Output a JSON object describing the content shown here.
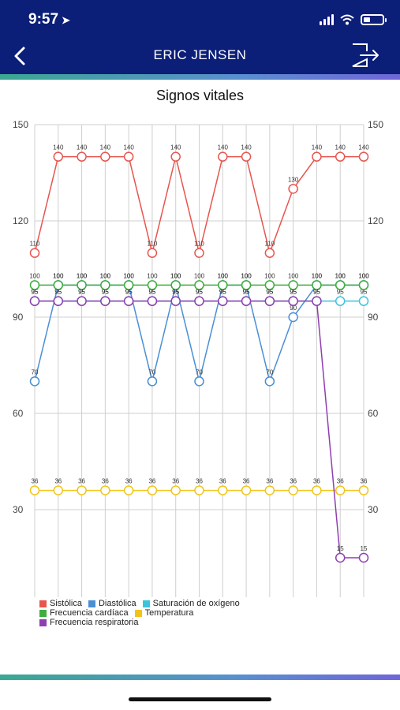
{
  "status_bar": {
    "time": "9:57",
    "location_icon": "location-arrow-icon",
    "icons": [
      "signal-icon",
      "wifi-icon",
      "battery-icon"
    ]
  },
  "header": {
    "title": "ERIC JENSEN",
    "back_icon": "chevron-left-icon",
    "logout_icon": "logout-icon",
    "background": "#0b1e78"
  },
  "chart_data": {
    "type": "line",
    "title": "Signos vitales",
    "ylim": [
      0,
      150
    ],
    "y_ticks": [
      30,
      60,
      90,
      120,
      150
    ],
    "grid": true,
    "legend_position": "bottom-left",
    "point_count": 15,
    "series": [
      {
        "name": "Sistólica",
        "color": "#e8554e",
        "values": [
          110,
          140,
          140,
          140,
          140,
          110,
          140,
          110,
          140,
          140,
          110,
          130,
          140,
          140,
          140
        ]
      },
      {
        "name": "Diastólica",
        "color": "#4a8fd6",
        "values": [
          70,
          100,
          100,
          100,
          100,
          70,
          100,
          70,
          100,
          100,
          70,
          90,
          100,
          100,
          100
        ]
      },
      {
        "name": "Saturación de oxígeno",
        "color": "#3cc4dc",
        "values": [
          95,
          95,
          95,
          95,
          95,
          95,
          95,
          95,
          95,
          95,
          95,
          95,
          95,
          95,
          95
        ]
      },
      {
        "name": "Frecuencia cardíaca",
        "color": "#3fae3f",
        "values": [
          100,
          100,
          100,
          100,
          100,
          100,
          100,
          100,
          100,
          100,
          100,
          100,
          100,
          100,
          100
        ]
      },
      {
        "name": "Temperatura",
        "color": "#f2c417",
        "values": [
          36,
          36,
          36,
          36,
          36,
          36,
          36,
          36,
          36,
          36,
          36,
          36,
          36,
          36,
          36
        ]
      },
      {
        "name": "Frecuencia respiratoria",
        "color": "#8e3fb0",
        "values": [
          95,
          95,
          95,
          95,
          95,
          95,
          95,
          95,
          95,
          95,
          95,
          95,
          95,
          15,
          15
        ]
      }
    ]
  }
}
